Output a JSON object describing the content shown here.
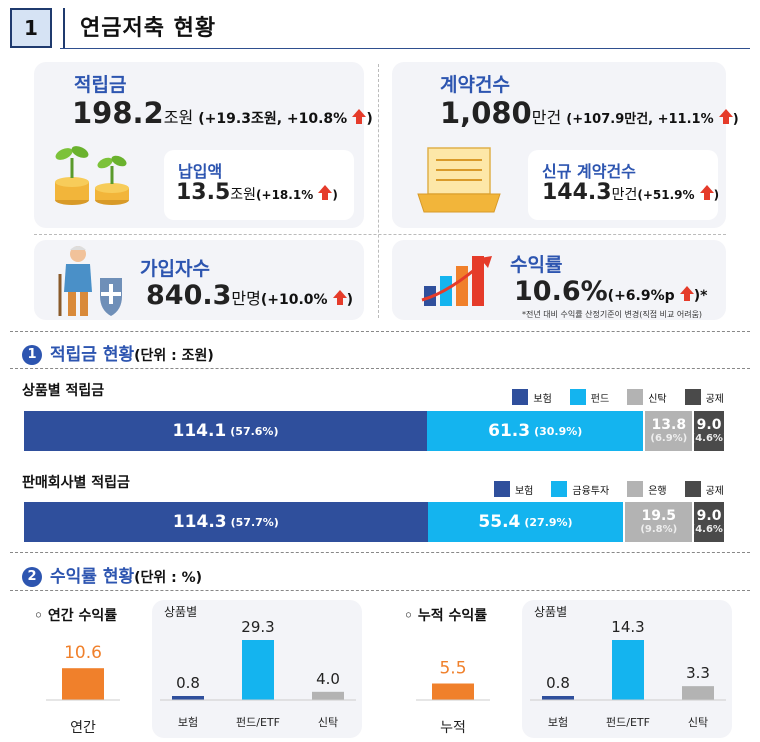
{
  "header": {
    "number": "1",
    "title": "연금저축 현황"
  },
  "summary": {
    "reserve": {
      "label": "적립금",
      "value": "198.2",
      "unit": "조원",
      "change": "(+19.3조원, +10.8%",
      "close": ")"
    },
    "payment": {
      "label": "납입액",
      "value": "13.5",
      "unit": "조원",
      "change": "(+18.1%",
      "close": ")"
    },
    "contracts": {
      "label": "계약건수",
      "value": "1,080",
      "unit": "만건",
      "change": "(+107.9만건, +11.1%",
      "close": ")"
    },
    "new_contracts": {
      "label": "신규 계약건수",
      "value": "144.3",
      "unit": "만건",
      "change": "(+51.9%",
      "close": ")"
    },
    "subscribers": {
      "label": "가입자수",
      "value": "840.3",
      "unit": "만명",
      "change": "(+10.0%",
      "close": ")"
    },
    "return": {
      "label": "수익률",
      "value": "10.6%",
      "change": "(+6.9%p",
      "close": ")*",
      "note": "*전년 대비 수익률 산정기준이 변경(직접 비교 어려움)"
    }
  },
  "section1": {
    "number": "1",
    "title": "적립금 현황",
    "unit": "(단위 : 조원)"
  },
  "section2": {
    "number": "2",
    "title": "수익률 현황",
    "unit": "(단위 : %)"
  },
  "colors": {
    "navy": "#2f4f9c",
    "sky": "#14b4ef",
    "gray": "#b3b3b3",
    "dark": "#4a4a4a",
    "orange": "#f0802b",
    "accent": "#2d55b0"
  },
  "chart_data": [
    {
      "type": "bar",
      "title": "상품별 적립금",
      "stacked": true,
      "orientation": "horizontal",
      "series": [
        {
          "name": "보험",
          "value": 114.1,
          "share": "(57.6%)",
          "color": "#2f4f9c"
        },
        {
          "name": "펀드",
          "value": 61.3,
          "share": "(30.9%)",
          "color": "#14b4ef"
        },
        {
          "name": "신탁",
          "value": 13.8,
          "share": "(6.9%)",
          "color": "#b3b3b3"
        },
        {
          "name": "공제",
          "value": 9.0,
          "share": "(4.6%)",
          "color": "#4a4a4a"
        }
      ]
    },
    {
      "type": "bar",
      "title": "판매회사별 적립금",
      "stacked": true,
      "orientation": "horizontal",
      "series": [
        {
          "name": "보험",
          "value": 114.3,
          "share": "(57.7%)",
          "color": "#2f4f9c"
        },
        {
          "name": "금융투자",
          "value": 55.4,
          "share": "(27.9%)",
          "color": "#14b4ef"
        },
        {
          "name": "은행",
          "value": 19.5,
          "share": "(9.8%)",
          "color": "#b3b3b3"
        },
        {
          "name": "공제",
          "value": 9.0,
          "share": "(4.6%)",
          "color": "#4a4a4a"
        }
      ]
    },
    {
      "type": "bar",
      "title": "◦ 연간 수익률",
      "total": {
        "category": "연간",
        "value": 10.6,
        "color": "#f0802b"
      },
      "subtitle": "상품별",
      "categories": [
        "보험",
        "펀드/ETF",
        "신탁"
      ],
      "values": [
        0.8,
        29.3,
        4.0
      ],
      "colors": [
        "#2f4f9c",
        "#14b4ef",
        "#b3b3b3"
      ]
    },
    {
      "type": "bar",
      "title": "◦ 누적 수익률",
      "total": {
        "category": "누적",
        "value": 5.5,
        "color": "#f0802b"
      },
      "subtitle": "상품별",
      "categories": [
        "보험",
        "펀드/ETF",
        "신탁"
      ],
      "values": [
        0.8,
        14.3,
        3.3
      ],
      "colors": [
        "#2f4f9c",
        "#14b4ef",
        "#b3b3b3"
      ]
    }
  ]
}
